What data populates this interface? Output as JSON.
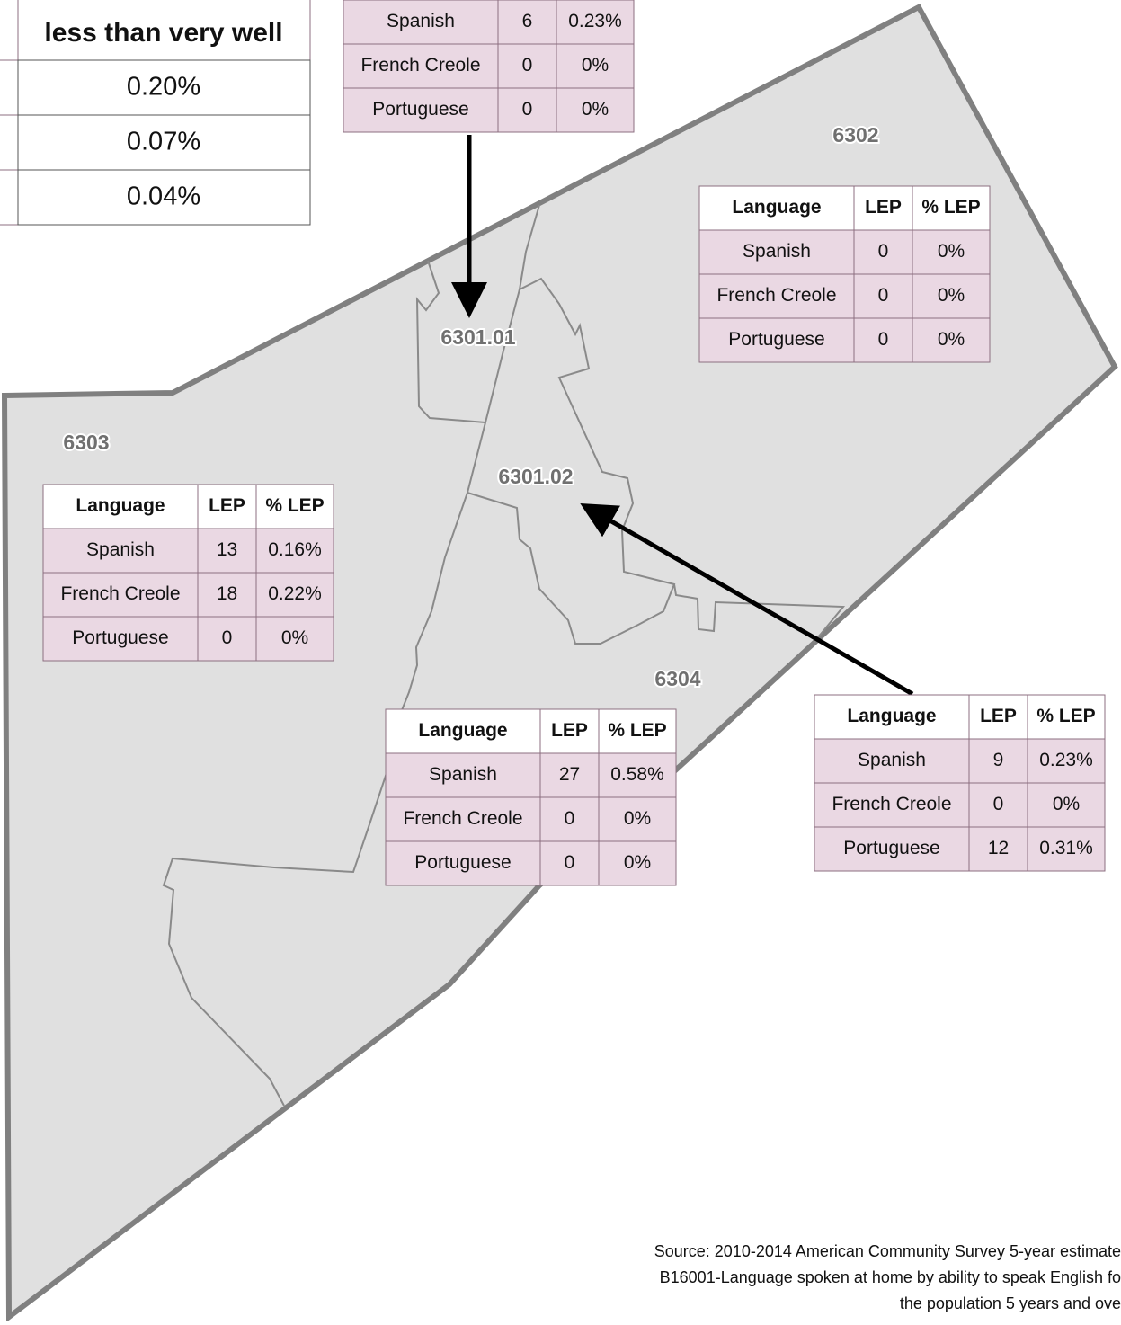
{
  "corner_table": {
    "header": "less than very well",
    "rows": [
      "0.20%",
      "0.07%",
      "0.04%"
    ]
  },
  "columns": [
    "Language",
    "LEP",
    "% LEP"
  ],
  "top_table": {
    "rows": [
      [
        "Spanish",
        "6",
        "0.23%"
      ],
      [
        "French Creole",
        "0",
        "0%"
      ],
      [
        "Portuguese",
        "0",
        "0%"
      ]
    ]
  },
  "tracts": [
    {
      "label": "6302",
      "rows": [
        [
          "Spanish",
          "0",
          "0%"
        ],
        [
          "French Creole",
          "0",
          "0%"
        ],
        [
          "Portuguese",
          "0",
          "0%"
        ]
      ]
    },
    {
      "label": "6301.01"
    },
    {
      "label": "6303",
      "rows": [
        [
          "Spanish",
          "13",
          "0.16%"
        ],
        [
          "French Creole",
          "18",
          "0.22%"
        ],
        [
          "Portuguese",
          "0",
          "0%"
        ]
      ]
    },
    {
      "label": "6301.02",
      "rows": [
        [
          "Spanish",
          "9",
          "0.23%"
        ],
        [
          "French Creole",
          "0",
          "0%"
        ],
        [
          "Portuguese",
          "12",
          "0.31%"
        ]
      ]
    },
    {
      "label": "6304",
      "rows": [
        [
          "Spanish",
          "27",
          "0.58%"
        ],
        [
          "French Creole",
          "0",
          "0%"
        ],
        [
          "Portuguese",
          "0",
          "0%"
        ]
      ]
    }
  ],
  "source": [
    "Source: 2010-2014 American Community Survey 5-year estimate",
    "B16001-Language spoken at home by ability to speak English fo",
    "the population 5 years and ove"
  ]
}
